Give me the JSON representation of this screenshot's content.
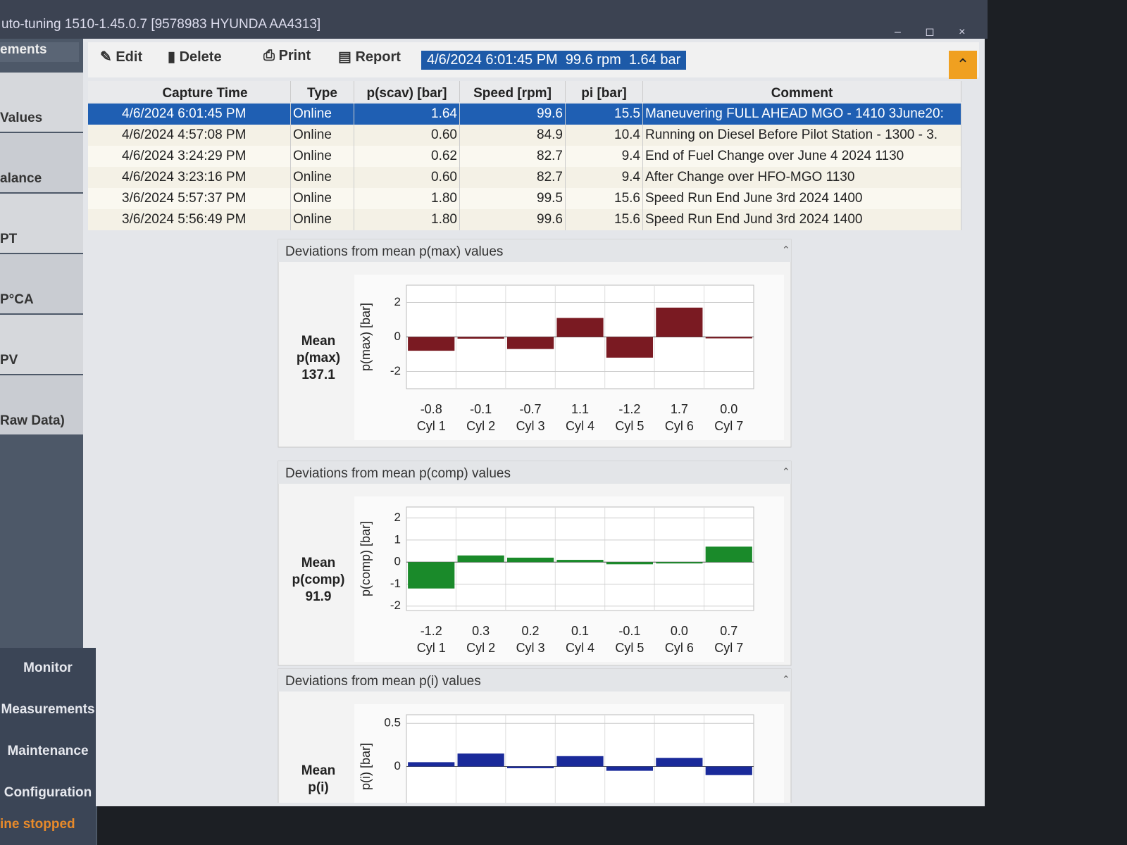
{
  "window": {
    "title": "uto-tuning 1510-1.45.0.7 [9578983 HYUNDA AA4313]"
  },
  "sidebar": {
    "header": "ements",
    "items": [
      "Values",
      "alance",
      "PT",
      "P°CA",
      "PV",
      "Raw Data)"
    ],
    "nav": [
      "Monitor",
      "Measurements",
      "Maintenance",
      "Configuration"
    ],
    "status": "ine stopped"
  },
  "toolbar": {
    "buttons": [
      "Edit",
      "Delete",
      "Print",
      "Report"
    ],
    "status": "4/6/2024 6:01:45 PM  99.6 rpm  1.64 bar"
  },
  "table": {
    "columns": [
      "Capture Time",
      "Type",
      "p(scav) [bar]",
      "Speed [rpm]",
      "pi [bar]",
      "Comment"
    ],
    "rows": [
      [
        "4/6/2024 6:01:45 PM",
        "Online",
        "1.64",
        "99.6",
        "15.5",
        "Maneuvering FULL AHEAD MGO - 1410 3June20:"
      ],
      [
        "4/6/2024 4:57:08 PM",
        "Online",
        "0.60",
        "84.9",
        "10.4",
        "Running on Diesel Before Pilot Station - 1300 - 3."
      ],
      [
        "4/6/2024 3:24:29 PM",
        "Online",
        "0.62",
        "82.7",
        "9.4",
        "End of Fuel Change over June 4 2024 1130"
      ],
      [
        "4/6/2024 3:23:16 PM",
        "Online",
        "0.60",
        "82.7",
        "9.4",
        "After Change over HFO-MGO 1130"
      ],
      [
        "3/6/2024 5:57:37 PM",
        "Online",
        "1.80",
        "99.5",
        "15.6",
        "Speed Run End June 3rd 2024 1400"
      ],
      [
        "3/6/2024 5:56:49 PM",
        "Online",
        "1.80",
        "99.6",
        "15.6",
        "Speed Run End Jund 3rd 2024 1400"
      ]
    ]
  },
  "chart_data": [
    {
      "type": "bar",
      "title": "Deviations from mean p(max) values",
      "mean_label": [
        "Mean",
        "p(max)"
      ],
      "mean_value": 137.1,
      "y_label": "p(max) [bar]",
      "categories": [
        "Cyl 1",
        "Cyl 2",
        "Cyl 3",
        "Cyl 4",
        "Cyl 5",
        "Cyl 6",
        "Cyl 7"
      ],
      "values": [
        -0.8,
        -0.1,
        -0.7,
        1.1,
        -1.2,
        1.7,
        0.0
      ],
      "value_labels": [
        "-0.8",
        "-0.1",
        "-0.7",
        "1.1",
        "-1.2",
        "1.7",
        "0.0"
      ],
      "color": "#7a1a22",
      "ylim": [
        -3,
        3
      ],
      "yticks": [
        -2,
        0,
        2
      ],
      "grid": true
    },
    {
      "type": "bar",
      "title": "Deviations from mean p(comp) values",
      "mean_label": [
        "Mean",
        "p(comp)"
      ],
      "mean_value": 91.9,
      "y_label": "p(comp) [bar]",
      "categories": [
        "Cyl 1",
        "Cyl 2",
        "Cyl 3",
        "Cyl 4",
        "Cyl 5",
        "Cyl 6",
        "Cyl 7"
      ],
      "values": [
        -1.2,
        0.3,
        0.2,
        0.1,
        -0.1,
        0.0,
        0.7
      ],
      "value_labels": [
        "-1.2",
        "0.3",
        "0.2",
        "0.1",
        "-0.1",
        "0.0",
        "0.7"
      ],
      "color": "#1a8a2a",
      "ylim": [
        -2.2,
        2.5
      ],
      "yticks": [
        -2,
        -1,
        0,
        1,
        2
      ],
      "grid": true
    },
    {
      "type": "bar",
      "title": "Deviations from mean p(i) values",
      "mean_label": [
        "Mean",
        "p(i)"
      ],
      "y_label": "p(i) [bar]",
      "values": [
        0.05,
        0.15,
        -0.02,
        0.12,
        -0.05,
        0.1,
        -0.1
      ],
      "color": "#1a2a9a",
      "ylim": [
        -0.6,
        0.6
      ],
      "yticks": [
        0,
        0.5
      ],
      "grid": true
    }
  ]
}
